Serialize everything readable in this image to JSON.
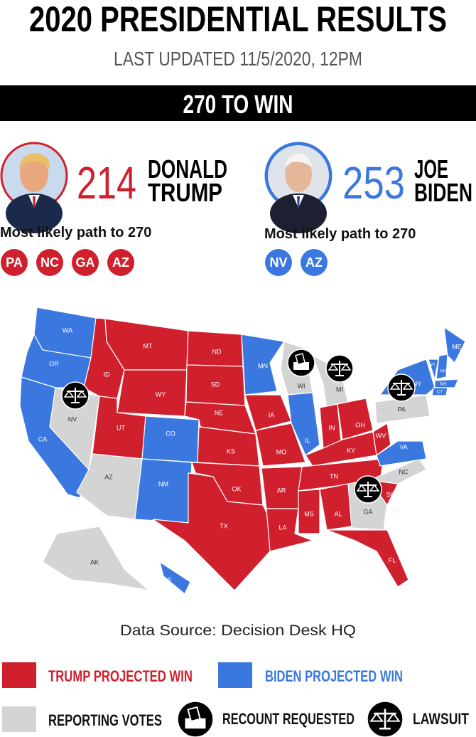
{
  "header": {
    "title": "2020 PRESIDENTIAL RESULTS",
    "subtitle": "LAST UPDATED 11/5/2020, 12PM",
    "banner": "270 TO WIN"
  },
  "candidates": [
    {
      "votes": 214,
      "name": [
        "DONALD",
        "TRUMP"
      ],
      "color": "#d0202e",
      "path_label": "Most likely path to 270",
      "path_states": [
        "PA",
        "NC",
        "GA",
        "AZ"
      ]
    },
    {
      "votes": 253,
      "name": [
        "JOE",
        "BIDEN"
      ],
      "color": "#3a78e0",
      "path_label": "Most likely path to 270",
      "path_states": [
        "NV",
        "AZ"
      ]
    }
  ],
  "map": {
    "states": [
      {
        "label": "WA",
        "color": "#3a78e0"
      },
      {
        "label": "OR",
        "color": "#3a78e0"
      },
      {
        "label": "CA",
        "color": "#3a78e0"
      },
      {
        "label": "NV",
        "color": "#d4d4d4"
      },
      {
        "label": "ID",
        "color": "#d0202e"
      },
      {
        "label": "MT",
        "color": "#d0202e"
      },
      {
        "label": "WY",
        "color": "#d0202e"
      },
      {
        "label": "UT",
        "color": "#d0202e"
      },
      {
        "label": "CO",
        "color": "#3a78e0"
      },
      {
        "label": "AZ",
        "color": "#d4d4d4"
      },
      {
        "label": "NM",
        "color": "#3a78e0"
      },
      {
        "label": "ND",
        "color": "#d0202e"
      },
      {
        "label": "SD",
        "color": "#d0202e"
      },
      {
        "label": "NE",
        "color": "#d0202e"
      },
      {
        "label": "KS",
        "color": "#d0202e"
      },
      {
        "label": "OK",
        "color": "#d0202e"
      },
      {
        "label": "TX",
        "color": "#d0202e"
      },
      {
        "label": "MN",
        "color": "#3a78e0"
      },
      {
        "label": "IA",
        "color": "#d0202e"
      },
      {
        "label": "MO",
        "color": "#d0202e"
      },
      {
        "label": "AR",
        "color": "#d0202e"
      },
      {
        "label": "LA",
        "color": "#d0202e"
      },
      {
        "label": "WI",
        "color": "#d4d4d4"
      },
      {
        "label": "IL",
        "color": "#3a78e0"
      },
      {
        "label": "MI",
        "color": "#d4d4d4"
      },
      {
        "label": "IN",
        "color": "#d0202e"
      },
      {
        "label": "OH",
        "color": "#d0202e"
      },
      {
        "label": "KY",
        "color": "#d0202e"
      },
      {
        "label": "TN",
        "color": "#d0202e"
      },
      {
        "label": "MS",
        "color": "#d0202e"
      },
      {
        "label": "AL",
        "color": "#d0202e"
      },
      {
        "label": "GA",
        "color": "#d4d4d4"
      },
      {
        "label": "FL",
        "color": "#d0202e"
      },
      {
        "label": "SC",
        "color": "#d0202e"
      },
      {
        "label": "NC",
        "color": "#d4d4d4"
      },
      {
        "label": "VA",
        "color": "#3a78e0"
      },
      {
        "label": "WV",
        "color": "#d0202e"
      },
      {
        "label": "PA",
        "color": "#d4d4d4"
      },
      {
        "label": "NY",
        "color": "#3a78e0"
      },
      {
        "label": "VT",
        "color": "#3a78e0"
      },
      {
        "label": "NH",
        "color": "#3a78e0"
      },
      {
        "label": "ME",
        "color": "#3a78e0"
      },
      {
        "label": "MA",
        "color": "#3a78e0"
      },
      {
        "label": "CT",
        "color": "#3a78e0"
      },
      {
        "label": "AK",
        "color": "#d4d4d4"
      },
      {
        "label": "HI",
        "color": "#3a78e0"
      }
    ]
  },
  "source": "Data Source: Decision Desk HQ",
  "legend": [
    {
      "label": "TRUMP PROJECTED WIN",
      "color": "#d0202e"
    },
    {
      "label": "BIDEN PROJECTED WIN",
      "color": "#3a78e0"
    },
    {
      "label": "REPORTING VOTES",
      "color": "#d4d4d4"
    }
  ],
  "icon_legend": [
    {
      "label": "RECOUNT REQUESTED"
    },
    {
      "label": "LAWSUIT"
    }
  ]
}
